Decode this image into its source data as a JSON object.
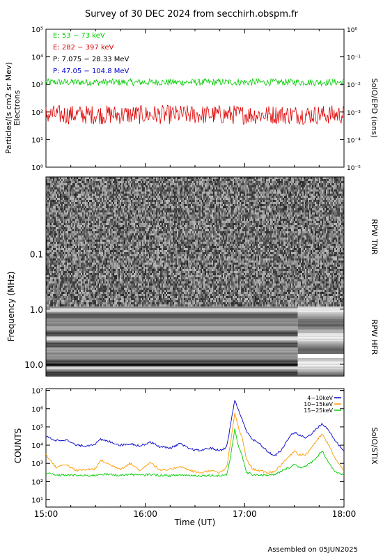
{
  "title": "Survey of 30 DEC 2024 from secchirh.obspm.fr",
  "footer": "Assembled on 05JUN2025",
  "colors": {
    "green": "#00cc00",
    "red": "#dd0000",
    "black": "#000000",
    "blue": "#0000cc",
    "orange": "#ff9900"
  },
  "chart_data": [
    {
      "type": "line",
      "panel": "epd",
      "ylabel": "Particles/(s cm2 sr Mev)",
      "ylabel2": "Electrons",
      "right_label": "SolO/EPD (ions)",
      "yscale": "log",
      "ylim": [
        1,
        100000
      ],
      "y_ticks": [
        "10⁰",
        "10¹",
        "10²",
        "10³",
        "10⁴",
        "10⁵"
      ],
      "y2lim": [
        1e-05,
        1
      ],
      "y2_ticks": [
        "10⁻⁵",
        "10⁻⁴",
        "10⁻³",
        "10⁻²",
        "10⁻¹",
        "10⁰"
      ],
      "series": [
        {
          "name": "E: 53 − 73 keV",
          "color": "#00cc00",
          "level": 1200,
          "noise": 0.25
        },
        {
          "name": "E: 282 − 397 keV",
          "color": "#dd0000",
          "level": 80,
          "noise": 0.7
        },
        {
          "name": "P: 7.075 − 28.33 MeV",
          "color": "#000000"
        },
        {
          "name": "P: 47.05 − 104.8 MeV",
          "color": "#0000cc"
        }
      ]
    },
    {
      "type": "heatmap",
      "panel": "rpw",
      "ylabel": "Frequency (MHz)",
      "yscale": "log",
      "ylim": [
        0.004,
        16.4
      ],
      "y_ticks": [
        "0.1",
        "1.0",
        "10.0"
      ],
      "tnr_label": "RPW TNR",
      "hfr_label": "RPW HFR",
      "tnr_hfr_boundary_mhz": 0.9
    },
    {
      "type": "line",
      "panel": "stix",
      "ylabel": "COUNTS",
      "right_label": "SolO/STIX",
      "yscale": "log",
      "ylim": [
        1,
        10000000
      ],
      "y_ticks": [
        "10¹",
        "10²",
        "10³",
        "10⁴",
        "10⁵",
        "10⁶",
        "10⁷"
      ],
      "xlabel": "Time (UT)",
      "x_ticks": [
        "15:00",
        "16:00",
        "17:00",
        "18:00"
      ],
      "xlim_hours": [
        15,
        18
      ],
      "series": [
        {
          "name": "4−10keV",
          "color": "#0000cc",
          "t": [
            15.0,
            15.1,
            15.2,
            15.3,
            15.4,
            15.5,
            15.55,
            15.65,
            15.75,
            15.85,
            15.95,
            16.05,
            16.15,
            16.25,
            16.35,
            16.45,
            16.55,
            16.65,
            16.75,
            16.82,
            16.86,
            16.9,
            16.94,
            16.98,
            17.02,
            17.08,
            17.15,
            17.22,
            17.3,
            17.38,
            17.45,
            17.5,
            17.55,
            17.62,
            17.7,
            17.78,
            17.85,
            17.92,
            18.0
          ],
          "v": [
            30000,
            18000,
            20000,
            10000,
            9000,
            12000,
            20000,
            15000,
            10000,
            12000,
            9000,
            15000,
            8000,
            7000,
            12000,
            6000,
            5000,
            7000,
            5000,
            8000,
            150000,
            3000000,
            800000,
            200000,
            60000,
            20000,
            12000,
            5000,
            2500,
            6000,
            30000,
            50000,
            35000,
            25000,
            60000,
            150000,
            60000,
            15000,
            5000
          ]
        },
        {
          "name": "10−15keV",
          "color": "#ff9900",
          "t": [
            15.0,
            15.1,
            15.2,
            15.3,
            15.4,
            15.5,
            15.55,
            15.65,
            15.75,
            15.85,
            15.95,
            16.05,
            16.15,
            16.25,
            16.35,
            16.45,
            16.55,
            16.65,
            16.75,
            16.82,
            16.86,
            16.9,
            16.94,
            16.98,
            17.02,
            17.08,
            17.15,
            17.22,
            17.3,
            17.38,
            17.45,
            17.5,
            17.55,
            17.62,
            17.7,
            17.78,
            17.85,
            17.92,
            18.0
          ],
          "v": [
            3000,
            600,
            900,
            400,
            450,
            500,
            1500,
            800,
            500,
            1000,
            400,
            1200,
            400,
            450,
            700,
            400,
            300,
            400,
            300,
            600,
            15000,
            600000,
            80000,
            20000,
            1500,
            500,
            400,
            300,
            350,
            1000,
            2500,
            5000,
            3000,
            3000,
            12000,
            40000,
            9000,
            1500,
            400
          ]
        },
        {
          "name": "15−25keV",
          "color": "#00cc00",
          "t": [
            15.0,
            15.1,
            15.2,
            15.3,
            15.4,
            15.5,
            15.55,
            15.65,
            15.75,
            15.85,
            15.95,
            16.05,
            16.15,
            16.25,
            16.35,
            16.45,
            16.55,
            16.65,
            16.75,
            16.82,
            16.86,
            16.9,
            16.94,
            16.98,
            17.02,
            17.08,
            17.15,
            17.22,
            17.3,
            17.38,
            17.45,
            17.5,
            17.55,
            17.62,
            17.7,
            17.78,
            17.85,
            17.92,
            18.0
          ],
          "v": [
            300,
            220,
            230,
            220,
            210,
            220,
            260,
            240,
            220,
            250,
            220,
            250,
            220,
            210,
            230,
            220,
            210,
            220,
            210,
            240,
            2500,
            80000,
            8000,
            2000,
            300,
            240,
            230,
            220,
            230,
            400,
            600,
            900,
            600,
            700,
            1500,
            5000,
            1000,
            300,
            220
          ]
        }
      ]
    }
  ]
}
